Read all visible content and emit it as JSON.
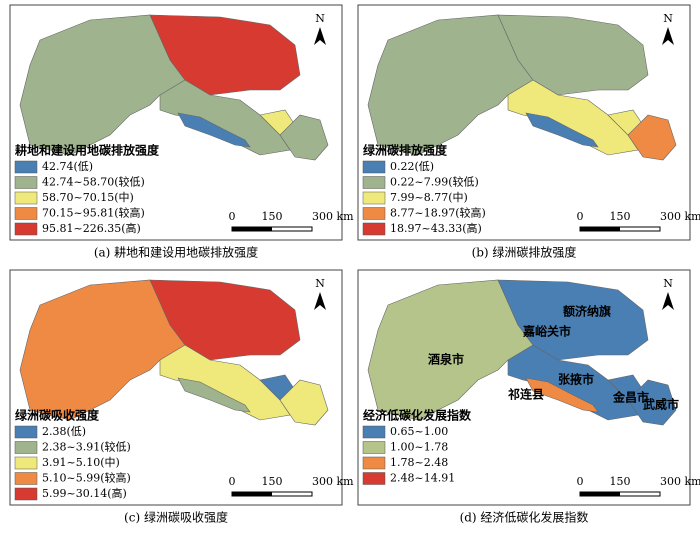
{
  "panels": [
    {
      "legend_title": "耕地和建设用地碳排放强度",
      "caption": "(a) 耕地和建设用地碳排放强度",
      "legend": [
        {
          "label": "42.74(低)",
          "color": "#4a7fb3"
        },
        {
          "label": "42.74~58.70(较低)",
          "color": "#9fb48e"
        },
        {
          "label": "58.70~70.15(中)",
          "color": "#eee97a"
        },
        {
          "label": "70.15~95.81(较高)",
          "color": "#ef8a45"
        },
        {
          "label": "95.81~226.35(高)",
          "color": "#d73a30"
        }
      ]
    },
    {
      "legend_title": "绿洲碳排放强度",
      "caption": "(b) 绿洲碳排放强度",
      "legend": [
        {
          "label": "0.22(低)",
          "color": "#4a7fb3"
        },
        {
          "label": "0.22~7.99(较低)",
          "color": "#9fb48e"
        },
        {
          "label": "7.99~8.77(中)",
          "color": "#eee97a"
        },
        {
          "label": "8.77~18.97(较高)",
          "color": "#ef8a45"
        },
        {
          "label": "18.97~43.33(高)",
          "color": "#d73a30"
        }
      ]
    },
    {
      "legend_title": "绿洲碳吸收强度",
      "caption": "(c) 绿洲碳吸收强度",
      "legend": [
        {
          "label": "2.38(低)",
          "color": "#4a7fb3"
        },
        {
          "label": "2.38~3.91(较低)",
          "color": "#9fb48e"
        },
        {
          "label": "3.91~5.10(中)",
          "color": "#eee97a"
        },
        {
          "label": "5.10~5.99(较高)",
          "color": "#ef8a45"
        },
        {
          "label": "5.99~30.14(高)",
          "color": "#d73a30"
        }
      ]
    },
    {
      "legend_title": "经济低碳化发展指数",
      "caption": "(d) 经济低碳化发展指数",
      "legend": [
        {
          "label": "0.65~1.00",
          "color": "#4a7fb3"
        },
        {
          "label": "1.00~1.78",
          "color": "#b4c48a"
        },
        {
          "label": "1.78~2.48",
          "color": "#ef8a45"
        },
        {
          "label": "2.48~14.91",
          "color": "#d73a30"
        }
      ],
      "place_labels": [
        "额济纳旗",
        "酒泉市",
        "嘉峪关市",
        "张掖市",
        "祁连县",
        "金昌市",
        "武威市"
      ]
    }
  ],
  "scale_labels": [
    "0",
    "150",
    "300 km"
  ],
  "north": "N"
}
